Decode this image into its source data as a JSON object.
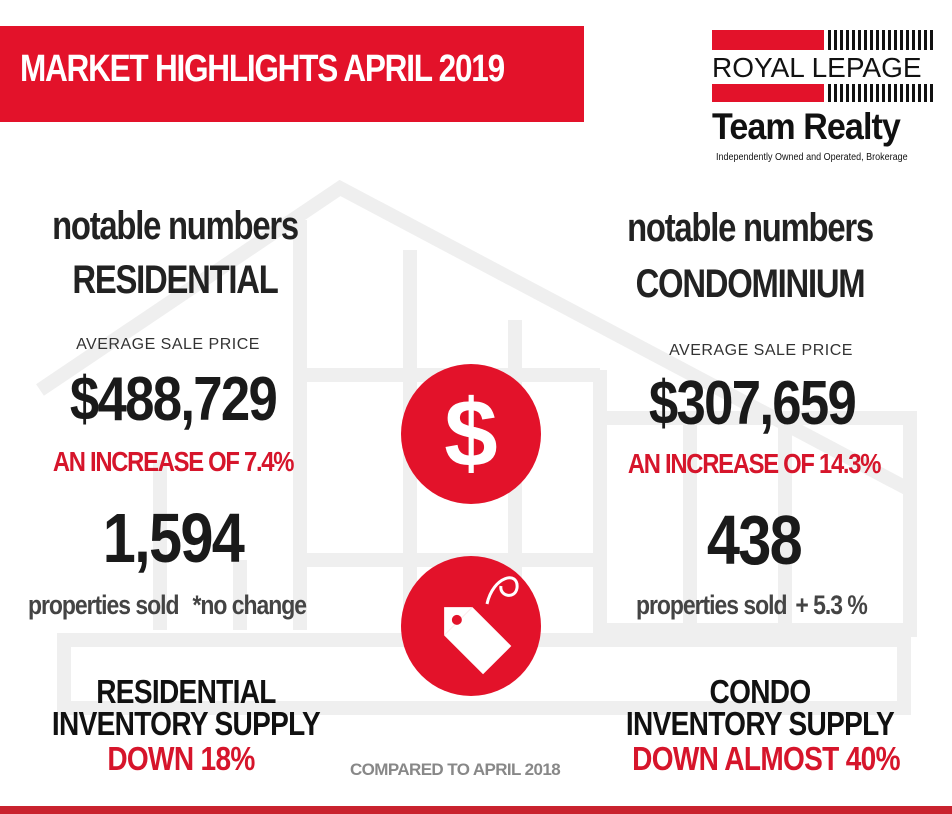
{
  "header": {
    "title": "MARKET HIGHLIGHTS APRIL 2019"
  },
  "logo": {
    "line1": "ROYAL LEPAGE",
    "line2": "Team Realty",
    "tagline": "Independently Owned and Operated, Brokerage"
  },
  "residential": {
    "heading1": "notable numbers",
    "heading2": "RESIDENTIAL",
    "avg_label": "AVERAGE SALE PRICE",
    "avg_price": "$488,729",
    "increase": "AN INCREASE OF 7.4%",
    "sold_count": "1,594",
    "sold_label": "properties sold",
    "sold_change": "*no change",
    "inventory_line1": "RESIDENTIAL",
    "inventory_line2": "INVENTORY SUPPLY",
    "inventory_change": "DOWN 18%"
  },
  "condominium": {
    "heading1": "notable numbers",
    "heading2": "CONDOMINIUM",
    "avg_label": "AVERAGE SALE PRICE",
    "avg_price": "$307,659",
    "increase": "AN INCREASE OF 14.3%",
    "sold_count": "438",
    "sold_label": "properties sold",
    "sold_change": "+ 5.3 %",
    "inventory_line1": "CONDO",
    "inventory_line2": "INVENTORY SUPPLY",
    "inventory_change": "DOWN ALMOST 40%"
  },
  "center": {
    "dollar_symbol": "$",
    "compared_note": "COMPARED TO APRIL 2018"
  },
  "colors": {
    "brand_red": "#e3122a",
    "text_dark": "#1a1a1a",
    "muted_gray": "#888888"
  },
  "icons": [
    "dollar-icon",
    "price-tag-icon",
    "house-outline-background"
  ]
}
